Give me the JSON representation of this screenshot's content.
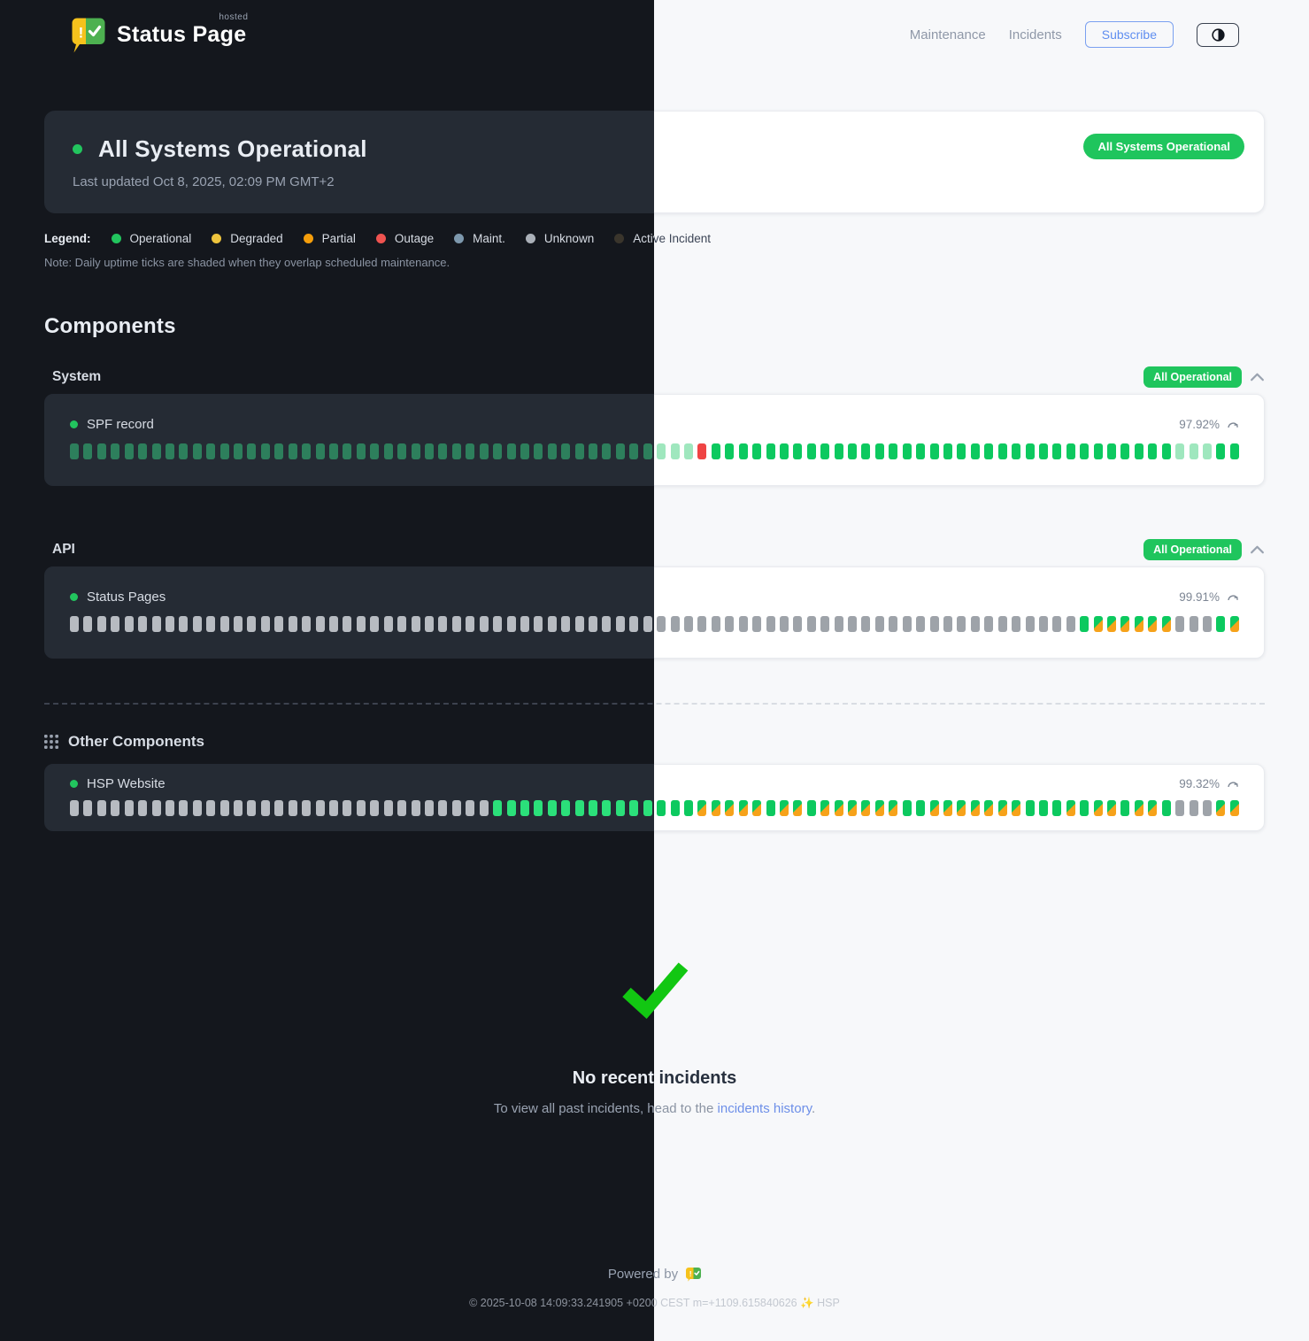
{
  "brand": {
    "name": "Status Page",
    "superscript": "hosted"
  },
  "nav": {
    "maintenance": "Maintenance",
    "incidents": "Incidents",
    "subscribe": "Subscribe"
  },
  "banner": {
    "title": "All Systems Operational",
    "updated": "Last updated Oct 8, 2025, 02:09 PM GMT+2",
    "badge": "All Systems Operational"
  },
  "legend": {
    "label": "Legend:",
    "items": [
      {
        "label": "Operational",
        "color": "#22c55e"
      },
      {
        "label": "Degraded",
        "color": "#eec43d"
      },
      {
        "label": "Partial",
        "color": "#f59e0b"
      },
      {
        "label": "Outage",
        "color": "#ef5350"
      },
      {
        "label": "Maint.",
        "color": "#7d98ad"
      },
      {
        "label": "Unknown",
        "color": "#aab0b8"
      },
      {
        "label": "Active Incident",
        "color": "#3a352c"
      }
    ],
    "note": "Note: Daily uptime ticks are shaded when they overlap scheduled maintenance."
  },
  "components": {
    "heading": "Components",
    "tick_codes": {
      "G": "operational",
      "g": "operational",
      "F": "shaded-maintenance-overlap",
      "R": "outage",
      "U": "unknown",
      "S": "operational-partial"
    },
    "groups": [
      {
        "name": "System",
        "badge": "All Operational",
        "items": [
          {
            "name": "SPF record",
            "uptime": "97.92%",
            "ticks": "gggggggggggggggggggggggggggggggggggggggggggFFFRGGGGGGGGGGGGGGGGGGGGGGGGGGGGGGGGGGFFFGG"
          }
        ]
      },
      {
        "name": "API",
        "badge": "All Operational",
        "items": [
          {
            "name": "Status Pages",
            "uptime": "99.91%",
            "ticks": "UUUUUUUUUUUUUUUUUUUUUUUUUUUUUUUUUUUUUUUUUUUUUUUUUUUUUUUUUUUUUUUUUUUUUUUUUUGSSSSSSUUUGS"
          }
        ]
      }
    ],
    "other": {
      "name": "Other Components",
      "items": [
        {
          "name": "HSP Website",
          "uptime": "99.32%",
          "ticks": "UUUUUUUUUUUUUUUUUUUUUUUUUUUUUUUGGGGGGGGGGGGGGGSSSSSGSSGSSSSSSGGSSSSSSSGGGSGSSGSSGUUUSS"
        }
      ]
    }
  },
  "incidents": {
    "title": "No recent incidents",
    "text_prefix": "To view all past incidents, head to the ",
    "link_text": "incidents history",
    "text_suffix": "."
  },
  "footer": {
    "powered_by": "Powered by",
    "copyright": "© 2025-10-08 14:09:33.241905 +0200 CEST m=+1109.615840626 ✨ HSP"
  },
  "colors": {
    "accent_green": "#22c55e",
    "badge_green": "#1fc55d",
    "outage_red": "#ef4444",
    "partial_orange": "#f6a21a",
    "link_blue": "#6d8fe8",
    "logo_yellow": "#f6c21c",
    "logo_green": "#4db150",
    "check_green": "#12c712"
  }
}
